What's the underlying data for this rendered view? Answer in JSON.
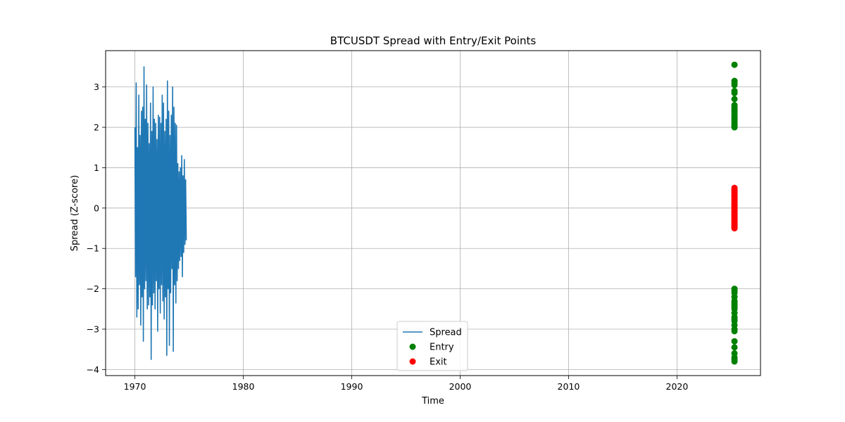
{
  "chart_data": {
    "type": "line",
    "title": "BTCUSDT Spread with Entry/Exit Points",
    "xlabel": "Time",
    "ylabel": "Spread (Z-score)",
    "xlim": [
      1967.3,
      2027.7
    ],
    "ylim": [
      -4.15,
      3.9
    ],
    "xticks": [
      1970,
      1980,
      1990,
      2000,
      2010,
      2020
    ],
    "yticks": [
      -4,
      -3,
      -2,
      -1,
      0,
      1,
      2,
      3
    ],
    "ytick_labels": [
      "−4",
      "−3",
      "−2",
      "−1",
      "0",
      "1",
      "2",
      "3"
    ],
    "grid": true,
    "legend": {
      "placement": "lower-center"
    },
    "series": [
      {
        "name": "Spread",
        "kind": "line",
        "color": "#1f77b4",
        "x": [
          1970.0,
          1970.06,
          1970.12,
          1970.18,
          1970.24,
          1970.3,
          1970.36,
          1970.42,
          1970.48,
          1970.54,
          1970.6,
          1970.66,
          1970.72,
          1970.78,
          1970.84,
          1970.9,
          1970.96,
          1971.02,
          1971.08,
          1971.14,
          1971.2,
          1971.26,
          1971.32,
          1971.38,
          1971.44,
          1971.5,
          1971.56,
          1971.62,
          1971.68,
          1971.74,
          1971.8,
          1971.86,
          1971.92,
          1971.98,
          1972.04,
          1972.1,
          1972.16,
          1972.22,
          1972.28,
          1972.34,
          1972.4,
          1972.46,
          1972.52,
          1972.58,
          1972.64,
          1972.7,
          1972.76,
          1972.82,
          1972.88,
          1972.94,
          1973.0,
          1973.06,
          1973.12,
          1973.18,
          1973.24,
          1973.3,
          1973.36,
          1973.42,
          1973.48,
          1973.54,
          1973.6,
          1973.66,
          1973.72,
          1973.78,
          1973.84,
          1973.9,
          1973.96,
          1974.02,
          1974.08,
          1974.14,
          1974.2,
          1974.26,
          1974.32,
          1974.38,
          1974.44,
          1974.5,
          1974.56,
          1974.62,
          1974.68,
          1974.74
        ],
        "y": [
          2.0,
          -1.7,
          3.1,
          -2.7,
          1.5,
          -2.5,
          2.8,
          -1.9,
          1.8,
          -2.9,
          2.4,
          -2.2,
          2.5,
          -3.3,
          3.5,
          -2.0,
          2.2,
          -1.8,
          3.05,
          -2.5,
          2.1,
          -2.4,
          1.6,
          -2.2,
          2.6,
          -3.75,
          1.9,
          -2.4,
          3.0,
          -2.1,
          2.2,
          -2.5,
          2.1,
          -1.8,
          1.7,
          -3.05,
          2.3,
          -2.0,
          2.25,
          -2.6,
          2.1,
          -1.9,
          2.8,
          -2.3,
          2.6,
          -2.75,
          1.9,
          -2.2,
          2.2,
          -3.65,
          3.15,
          -2.0,
          2.4,
          -3.4,
          1.8,
          -2.1,
          2.3,
          -1.5,
          3.0,
          -3.55,
          2.5,
          -1.9,
          2.1,
          -2.35,
          2.05,
          -1.8,
          1.1,
          -1.5,
          0.9,
          -1.3,
          1.0,
          -1.2,
          1.3,
          -1.7,
          0.8,
          -1.1,
          1.2,
          -0.9,
          0.7,
          -0.8
        ]
      },
      {
        "name": "Entry",
        "kind": "scatter",
        "color": "#008000",
        "x": [
          2025.3,
          2025.3,
          2025.3,
          2025.3,
          2025.3,
          2025.3,
          2025.3,
          2025.3,
          2025.3,
          2025.3,
          2025.3,
          2025.3,
          2025.3,
          2025.3,
          2025.3,
          2025.3,
          2025.3,
          2025.3,
          2025.3,
          2025.3,
          2025.3,
          2025.3,
          2025.3,
          2025.3,
          2025.3,
          2025.3,
          2025.3,
          2025.3,
          2025.3,
          2025.3,
          2025.3,
          2025.3,
          2025.3,
          2025.3,
          2025.3,
          2025.3,
          2025.3,
          2025.3,
          2025.3,
          2025.3,
          2025.3,
          2025.3
        ],
        "y": [
          3.55,
          3.15,
          3.1,
          3.05,
          2.9,
          2.85,
          2.7,
          2.55,
          2.5,
          2.45,
          2.4,
          2.35,
          2.3,
          2.25,
          2.2,
          2.15,
          2.1,
          2.05,
          2.0,
          2.02,
          -2.0,
          -2.05,
          -2.1,
          -2.2,
          -2.3,
          -2.35,
          -2.4,
          -2.45,
          -2.5,
          -2.6,
          -2.7,
          -2.75,
          -2.8,
          -2.9,
          -3.0,
          -3.05,
          -3.3,
          -3.45,
          -3.6,
          -3.7,
          -3.75,
          -3.8
        ]
      },
      {
        "name": "Exit",
        "kind": "scatter",
        "color": "#ff0000",
        "x": [
          2025.3,
          2025.3,
          2025.3,
          2025.3,
          2025.3,
          2025.3,
          2025.3,
          2025.3,
          2025.3,
          2025.3,
          2025.3,
          2025.3,
          2025.3,
          2025.3,
          2025.3,
          2025.3,
          2025.3,
          2025.3,
          2025.3,
          2025.3,
          2025.3,
          2025.3,
          2025.3,
          2025.3,
          2025.3,
          2025.3,
          2025.3,
          2025.3,
          2025.3,
          2025.3,
          2025.3
        ],
        "y": [
          0.5,
          0.45,
          0.42,
          0.38,
          0.35,
          0.3,
          0.27,
          0.22,
          0.2,
          0.15,
          0.12,
          0.08,
          0.05,
          0.02,
          0.0,
          -0.03,
          -0.06,
          -0.1,
          -0.13,
          -0.17,
          -0.2,
          -0.23,
          -0.27,
          -0.3,
          -0.33,
          -0.37,
          -0.4,
          -0.43,
          -0.46,
          -0.48,
          -0.5
        ]
      }
    ]
  }
}
